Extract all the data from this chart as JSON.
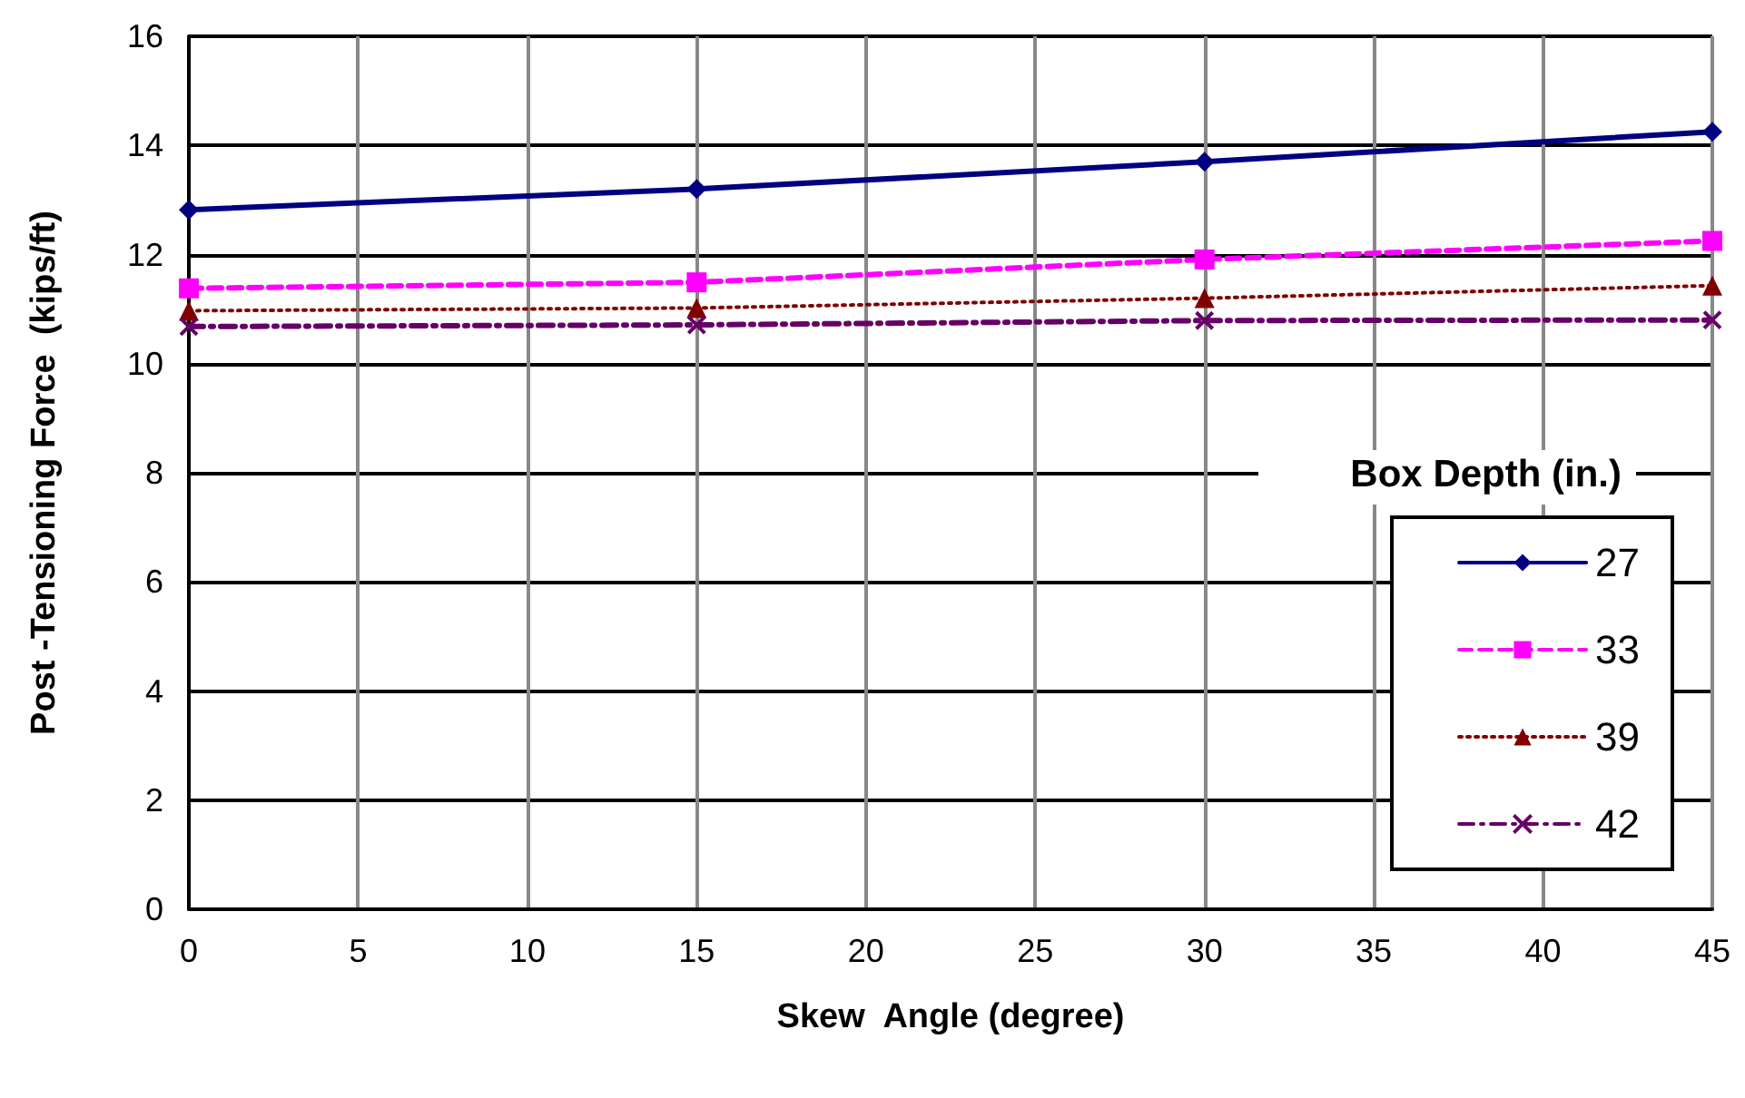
{
  "chart_data": {
    "type": "line",
    "xlabel": "Skew  Angle (degree)",
    "ylabel": "Post -Tensioning Force  (kips/ft)",
    "legend_title": "Box Depth (in.)",
    "x": [
      0,
      15,
      30,
      45
    ],
    "xlim": [
      0,
      45
    ],
    "xticks": [
      0,
      5,
      10,
      15,
      20,
      25,
      30,
      35,
      40,
      45
    ],
    "ylim": [
      0,
      16
    ],
    "yticks": [
      0,
      2,
      4,
      6,
      8,
      10,
      12,
      14,
      16
    ],
    "grid": true,
    "legend": "right",
    "series": [
      {
        "name": "27",
        "color": "#000080",
        "marker": "diamond",
        "line_style": "solid",
        "values": [
          12.82,
          13.2,
          13.7,
          14.25
        ]
      },
      {
        "name": "33",
        "color": "#ff00ff",
        "marker": "square",
        "line_style": "dashed",
        "values": [
          11.38,
          11.49,
          11.91,
          12.25
        ]
      },
      {
        "name": "39",
        "color": "#800000",
        "marker": "triangle",
        "line_style": "dotted",
        "values": [
          10.97,
          11.02,
          11.2,
          11.43
        ]
      },
      {
        "name": "42",
        "color": "#660066",
        "marker": "cross",
        "line_style": "dashdot",
        "values": [
          10.68,
          10.71,
          10.79,
          10.8
        ]
      }
    ]
  }
}
